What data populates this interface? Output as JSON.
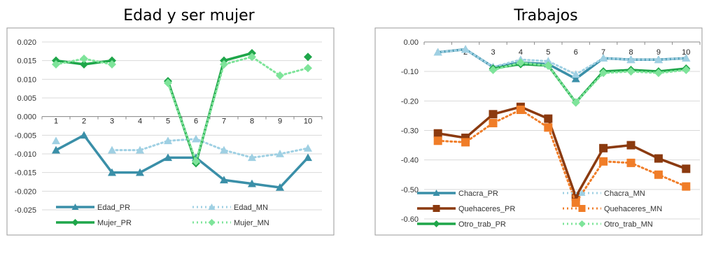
{
  "chart_data": [
    {
      "type": "line",
      "title": "Edad y ser mujer",
      "categories": [
        "1",
        "2",
        "3",
        "4",
        "5",
        "6",
        "7",
        "8",
        "9",
        "10"
      ],
      "ylim": [
        -0.025,
        0.02
      ],
      "yticks": [
        "0.020",
        "0.015",
        "0.010",
        "0.005",
        "0.000",
        "-0.005",
        "-0.010",
        "-0.015",
        "-0.020",
        "-0.025"
      ],
      "yticks_values": [
        0.02,
        0.015,
        0.01,
        0.005,
        0.0,
        -0.005,
        -0.01,
        -0.015,
        -0.02,
        -0.025
      ],
      "grid": true,
      "legend_position": "bottom",
      "series": [
        {
          "name": "Edad_PR",
          "color": "#3a8fa8",
          "style": "solid",
          "marker": "triangle",
          "values": [
            -0.009,
            -0.005,
            -0.015,
            -0.015,
            -0.011,
            -0.011,
            -0.017,
            -0.018,
            -0.019,
            -0.011
          ]
        },
        {
          "name": "Edad_MN",
          "color": "#9fd0e3",
          "style": "dotted",
          "marker": "triangle",
          "values": [
            -0.0065,
            null,
            -0.009,
            -0.009,
            -0.0065,
            -0.006,
            -0.009,
            -0.011,
            -0.01,
            -0.0085
          ]
        },
        {
          "name": "Mujer_PR",
          "color": "#1fa64a",
          "style": "solid",
          "marker": "diamond",
          "values": [
            0.015,
            0.014,
            0.015,
            null,
            0.0095,
            -0.0125,
            0.015,
            0.017,
            null,
            0.016
          ]
        },
        {
          "name": "Mujer_MN",
          "color": "#7ee49a",
          "style": "dotted",
          "marker": "diamond",
          "values": [
            0.014,
            0.0155,
            0.014,
            null,
            0.009,
            -0.012,
            0.014,
            0.016,
            0.011,
            0.013
          ]
        }
      ]
    },
    {
      "type": "line",
      "title": "Trabajos",
      "categories": [
        "1",
        "2",
        "3",
        "4",
        "5",
        "6",
        "7",
        "8",
        "9",
        "10"
      ],
      "ylim": [
        -0.6,
        0.0
      ],
      "yticks": [
        "0.00",
        "-0.10",
        "-0.20",
        "-0.30",
        "-0.40",
        "-0.50",
        "-0.60"
      ],
      "yticks_values": [
        0.0,
        -0.1,
        -0.2,
        -0.3,
        -0.4,
        -0.5,
        -0.6
      ],
      "grid": true,
      "legend_position": "bottom",
      "series": [
        {
          "name": "Chacra_PR",
          "color": "#3a8fa8",
          "style": "solid",
          "marker": "triangle",
          "values": [
            -0.035,
            -0.025,
            -0.085,
            -0.07,
            -0.075,
            -0.125,
            -0.055,
            -0.06,
            -0.06,
            -0.055
          ]
        },
        {
          "name": "Chacra_MN",
          "color": "#9fd0e3",
          "style": "dotted",
          "marker": "triangle",
          "values": [
            -0.035,
            -0.025,
            -0.085,
            -0.06,
            -0.065,
            -0.11,
            -0.055,
            -0.06,
            -0.06,
            -0.055
          ]
        },
        {
          "name": "Quehaceres_PR",
          "color": "#8b3a0f",
          "style": "solid",
          "marker": "square",
          "values": [
            -0.31,
            -0.325,
            -0.245,
            -0.22,
            -0.26,
            -0.525,
            -0.36,
            -0.35,
            -0.395,
            -0.43
          ]
        },
        {
          "name": "Quehaceres_MN",
          "color": "#f07d28",
          "style": "dotted",
          "marker": "square",
          "values": [
            -0.335,
            -0.34,
            -0.275,
            -0.23,
            -0.29,
            -0.545,
            -0.405,
            -0.41,
            -0.45,
            -0.49
          ]
        },
        {
          "name": "Otro_trab_PR",
          "color": "#1fa64a",
          "style": "solid",
          "marker": "diamond",
          "values": [
            null,
            null,
            -0.09,
            -0.075,
            -0.08,
            -0.205,
            -0.1,
            -0.095,
            -0.1,
            -0.09
          ]
        },
        {
          "name": "Otro_trab_MN",
          "color": "#7ee49a",
          "style": "dotted",
          "marker": "diamond",
          "values": [
            null,
            null,
            -0.095,
            -0.07,
            -0.08,
            -0.205,
            -0.105,
            -0.1,
            -0.105,
            -0.095
          ]
        }
      ]
    }
  ]
}
